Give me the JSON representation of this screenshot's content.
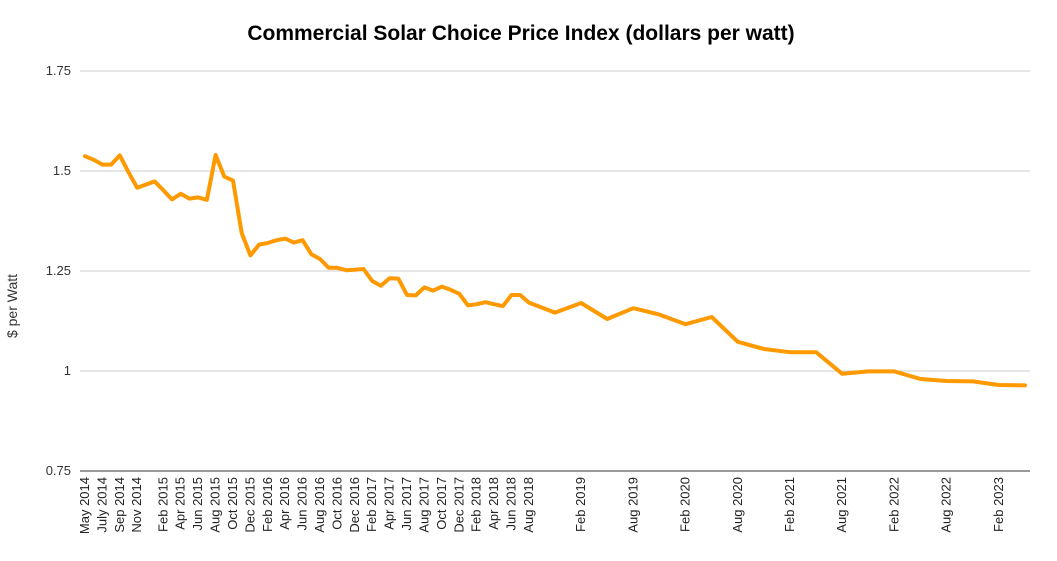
{
  "chart_data": {
    "type": "line",
    "title": "Commercial Solar Choice Price Index (dollars per watt)",
    "xlabel": "",
    "ylabel": "$ per Watt",
    "ylim": [
      0.75,
      1.75
    ],
    "yticks": [
      "0.75",
      "1",
      "1.25",
      "1.5",
      "1.75"
    ],
    "grid": true,
    "legend": "none",
    "line_color": "#ff9900",
    "x_tick_labels": [
      "May 2014",
      "July 2014",
      "Sep 2014",
      "Nov 2014",
      "Feb 2015",
      "Apr 2015",
      "Jun 2015",
      "Aug 2015",
      "Oct 2015",
      "Dec 2015",
      "Feb 2016",
      "Apr 2016",
      "Jun 2016",
      "Aug 2016",
      "Oct 2016",
      "Dec 2016",
      "Feb 2017",
      "Apr 2017",
      "Jun 2017",
      "Aug 2017",
      "Oct 2017",
      "Dec 2017",
      "Feb 2018",
      "Apr 2018",
      "Jun 2018",
      "Aug 2018",
      "Feb 2019",
      "Aug 2019",
      "Feb 2020",
      "Aug 2020",
      "Feb 2021",
      "Aug 2021",
      "Feb 2022",
      "Aug 2022",
      "Feb 2023"
    ],
    "series": [
      {
        "x": [
          "May 2014",
          "Jun 2014",
          "Jul 2014",
          "Aug 2014",
          "Sep 2014",
          "Oct 2014",
          "Nov 2014",
          "Jan 2015",
          "Feb 2015",
          "Mar 2015",
          "Apr 2015",
          "May 2015",
          "Jun 2015",
          "Jul 2015",
          "Aug 2015",
          "Sep 2015",
          "Oct 2015",
          "Nov 2015",
          "Dec 2015",
          "Jan 2016",
          "Feb 2016",
          "Mar 2016",
          "Apr 2016",
          "May 2016",
          "Jun 2016",
          "Jul 2016",
          "Aug 2016",
          "Sep 2016",
          "Oct 2016",
          "Nov 2016",
          "Dec 2016",
          "Jan 2017",
          "Feb 2017",
          "Mar 2017",
          "Apr 2017",
          "May 2017",
          "Jun 2017",
          "Jul 2017",
          "Aug 2017",
          "Sep 2017",
          "Oct 2017",
          "Nov 2017",
          "Dec 2017",
          "Jan 2018",
          "Feb 2018",
          "Mar 2018",
          "Apr 2018",
          "May 2018",
          "Jun 2018",
          "Jul 2018",
          "Aug 2018",
          "Nov 2018",
          "Feb 2019",
          "May 2019",
          "Aug 2019",
          "Nov 2019",
          "Feb 2020",
          "May 2020",
          "Aug 2020",
          "Nov 2020",
          "Feb 2021",
          "May 2021",
          "Aug 2021",
          "Nov 2021",
          "Feb 2022",
          "May 2022",
          "Aug 2022",
          "Nov 2022",
          "Feb 2023",
          "May 2023"
        ],
        "values": [
          1.537,
          1.528,
          1.516,
          1.516,
          1.539,
          1.497,
          1.458,
          1.474,
          1.452,
          1.429,
          1.443,
          1.431,
          1.434,
          1.428,
          1.54,
          1.486,
          1.476,
          1.345,
          1.289,
          1.316,
          1.32,
          1.327,
          1.331,
          1.321,
          1.327,
          1.292,
          1.28,
          1.258,
          1.258,
          1.252,
          1.253,
          1.255,
          1.225,
          1.213,
          1.232,
          1.231,
          1.19,
          1.189,
          1.209,
          1.201,
          1.211,
          1.203,
          1.193,
          1.164,
          1.167,
          1.172,
          1.167,
          1.162,
          1.19,
          1.19,
          1.171,
          1.146,
          1.17,
          1.13,
          1.157,
          1.141,
          1.117,
          1.135,
          1.073,
          1.055,
          1.047,
          1.047,
          0.993,
          0.999,
          0.999,
          0.98,
          0.975,
          0.974,
          0.965,
          0.964
        ]
      }
    ]
  }
}
